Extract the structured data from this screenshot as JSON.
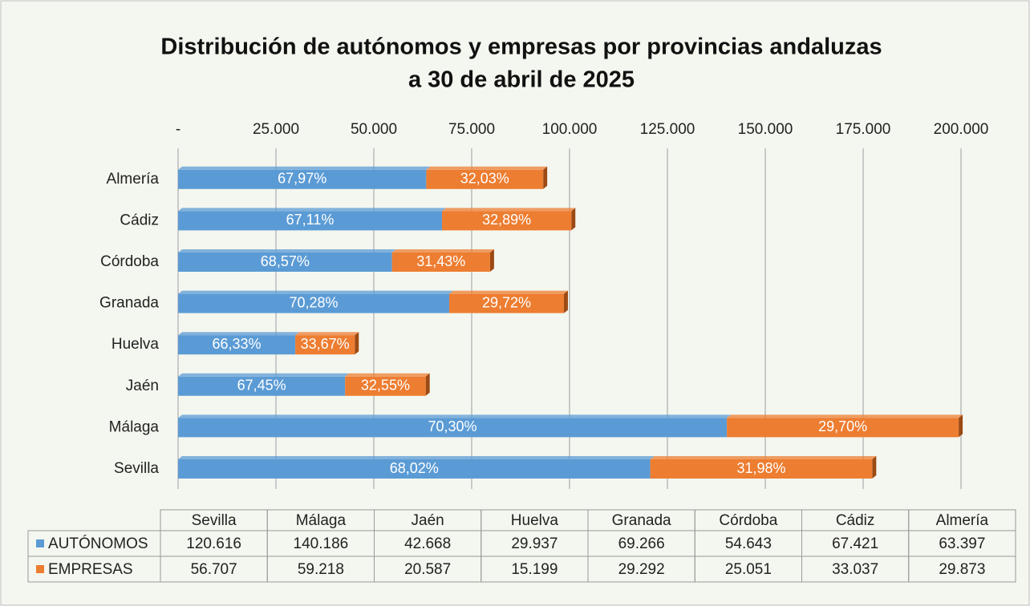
{
  "chart_data": {
    "type": "stacked-bar-horizontal",
    "title": "Distribución de autónomos y empresas por provincias andaluzas",
    "subtitle": "a 30 de abril de 2025",
    "categories": [
      "Sevilla",
      "Málaga",
      "Jaén",
      "Huelva",
      "Granada",
      "Córdoba",
      "Cádiz",
      "Almería"
    ],
    "series": [
      {
        "name": "AUTÓNOMOS",
        "color": "#5b9bd5",
        "values": [
          120616,
          140186,
          42668,
          29937,
          69266,
          54643,
          67421,
          63397
        ],
        "value_labels": [
          "120.616",
          "140.186",
          "42.668",
          "29.937",
          "69.266",
          "54.643",
          "67.421",
          "63.397"
        ],
        "percent_labels": [
          "68,02%",
          "70,30%",
          "67,45%",
          "66,33%",
          "70,28%",
          "68,57%",
          "67,11%",
          "67,97%"
        ]
      },
      {
        "name": "EMPRESAS",
        "color": "#ed7d31",
        "values": [
          56707,
          59218,
          20587,
          15199,
          29292,
          25051,
          33037,
          29873
        ],
        "value_labels": [
          "56.707",
          "59.218",
          "20.587",
          "15.199",
          "29.292",
          "25.051",
          "33.037",
          "29.873"
        ],
        "percent_labels": [
          "31,98%",
          "29,70%",
          "32,55%",
          "33,67%",
          "29,72%",
          "31,43%",
          "32,89%",
          "32,03%"
        ]
      }
    ],
    "xlim": [
      0,
      200000
    ],
    "xticks": [
      {
        "value": 0,
        "label": "-"
      },
      {
        "value": 25000,
        "label": "25.000"
      },
      {
        "value": 50000,
        "label": "50.000"
      },
      {
        "value": 75000,
        "label": "75.000"
      },
      {
        "value": 100000,
        "label": "100.000"
      },
      {
        "value": 125000,
        "label": "125.000"
      },
      {
        "value": 150000,
        "label": "150.000"
      },
      {
        "value": 175000,
        "label": "175.000"
      },
      {
        "value": 200000,
        "label": "200.000"
      }
    ],
    "grid": true
  }
}
